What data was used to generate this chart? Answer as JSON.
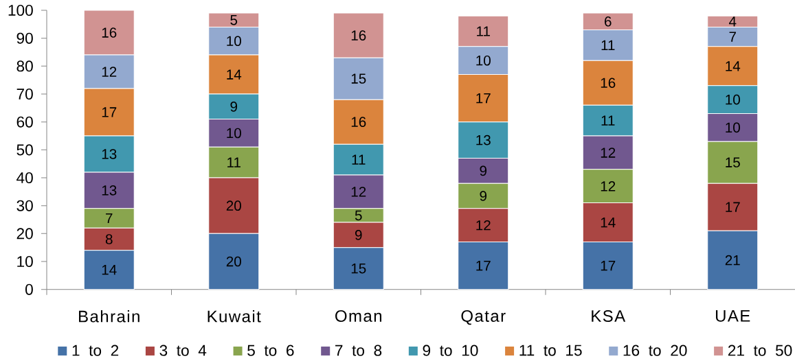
{
  "chart_data": {
    "type": "bar",
    "stacked": true,
    "categories": [
      "Bahrain",
      "Kuwait",
      "Oman",
      "Qatar",
      "KSA",
      "UAE"
    ],
    "series": [
      {
        "name": "1 to 2",
        "color": "#4572a7",
        "values": [
          14,
          20,
          15,
          17,
          17,
          21
        ]
      },
      {
        "name": "3 to 4",
        "color": "#aa4643",
        "values": [
          8,
          20,
          9,
          12,
          14,
          17
        ]
      },
      {
        "name": "5 to 6",
        "color": "#89a54e",
        "values": [
          7,
          11,
          5,
          9,
          12,
          15
        ]
      },
      {
        "name": "7 to 8",
        "color": "#71588f",
        "values": [
          13,
          10,
          12,
          9,
          12,
          10
        ]
      },
      {
        "name": "9 to 10",
        "color": "#4198af",
        "values": [
          13,
          9,
          11,
          13,
          11,
          10
        ]
      },
      {
        "name": "11 to 15",
        "color": "#db843d",
        "values": [
          17,
          14,
          16,
          17,
          16,
          14
        ]
      },
      {
        "name": "16 to 20",
        "color": "#93a9cf",
        "values": [
          12,
          10,
          15,
          10,
          11,
          7
        ]
      },
      {
        "name": "21 to 50",
        "color": "#d19392",
        "values": [
          16,
          5,
          16,
          11,
          6,
          4
        ]
      }
    ],
    "ylim": [
      0,
      100
    ],
    "yticks": [
      0,
      10,
      20,
      30,
      40,
      50,
      60,
      70,
      80,
      90,
      100
    ],
    "data_labels": true,
    "legend": "bottom"
  }
}
